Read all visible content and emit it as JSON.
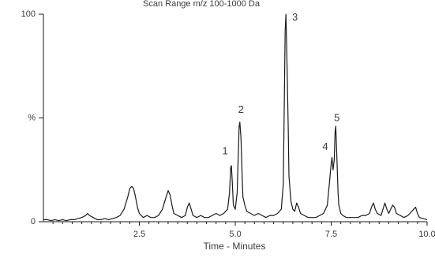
{
  "chart_data": {
    "type": "line",
    "title": "Scan Range m/z 100-1000 Da",
    "xlabel": "Time - Minutes",
    "ylabel": "%",
    "xlim": [
      0,
      10
    ],
    "ylim": [
      0,
      100
    ],
    "grid": false,
    "legend": "none",
    "x_ticks": [
      {
        "value": 2.5,
        "label": "2.5"
      },
      {
        "value": 5.0,
        "label": "5.0"
      },
      {
        "value": 7.5,
        "label": "7.5"
      },
      {
        "value": 10.0,
        "label": "10.0"
      }
    ],
    "y_ticks": [
      {
        "value": 0,
        "label": "0"
      },
      {
        "value": 50,
        "label": "%"
      },
      {
        "value": 100,
        "label": "100"
      }
    ],
    "peak_labels": [
      {
        "label": "1",
        "x": 4.9,
        "y": 28
      },
      {
        "label": "2",
        "x": 5.15,
        "y": 48
      },
      {
        "label": "3",
        "x": 6.35,
        "y": 100
      },
      {
        "label": "4",
        "x": 7.55,
        "y": 30
      },
      {
        "label": "5",
        "x": 7.65,
        "y": 44
      }
    ],
    "series": [
      {
        "color": "#1a1a1a",
        "x": [
          0.0,
          0.1,
          0.2,
          0.3,
          0.4,
          0.5,
          0.6,
          0.7,
          0.8,
          0.9,
          1.0,
          1.1,
          1.15,
          1.2,
          1.3,
          1.4,
          1.5,
          1.6,
          1.7,
          1.8,
          1.9,
          2.0,
          2.1,
          2.2,
          2.25,
          2.3,
          2.35,
          2.4,
          2.45,
          2.5,
          2.6,
          2.7,
          2.8,
          2.9,
          3.0,
          3.1,
          3.2,
          3.25,
          3.3,
          3.35,
          3.4,
          3.5,
          3.6,
          3.7,
          3.75,
          3.8,
          3.85,
          3.9,
          4.0,
          4.1,
          4.2,
          4.3,
          4.4,
          4.5,
          4.6,
          4.7,
          4.8,
          4.85,
          4.88,
          4.9,
          4.92,
          4.95,
          5.0,
          5.05,
          5.1,
          5.12,
          5.15,
          5.18,
          5.2,
          5.25,
          5.3,
          5.4,
          5.5,
          5.6,
          5.7,
          5.8,
          5.9,
          6.0,
          6.1,
          6.2,
          6.25,
          6.28,
          6.3,
          6.32,
          6.35,
          6.38,
          6.4,
          6.45,
          6.5,
          6.55,
          6.6,
          6.65,
          6.7,
          6.8,
          6.9,
          7.0,
          7.1,
          7.2,
          7.3,
          7.4,
          7.45,
          7.5,
          7.52,
          7.55,
          7.58,
          7.6,
          7.62,
          7.65,
          7.68,
          7.7,
          7.75,
          7.8,
          7.9,
          8.0,
          8.1,
          8.2,
          8.3,
          8.4,
          8.5,
          8.55,
          8.6,
          8.65,
          8.7,
          8.8,
          8.85,
          8.9,
          8.95,
          9.0,
          9.05,
          9.1,
          9.15,
          9.2,
          9.3,
          9.4,
          9.5,
          9.6,
          9.65,
          9.7,
          9.75,
          9.8,
          9.9,
          10.0
        ],
        "y": [
          1,
          1,
          0.5,
          1,
          0.5,
          1,
          0.5,
          1,
          1,
          1.5,
          2,
          3,
          4,
          3,
          2,
          1,
          1,
          1.5,
          1,
          1.5,
          2,
          3,
          6,
          12,
          16,
          17,
          16,
          12,
          7,
          4,
          2,
          3,
          2,
          2,
          3,
          6,
          12,
          15,
          13,
          8,
          4,
          3,
          2,
          3,
          7,
          9,
          6,
          3,
          2,
          3,
          2,
          2,
          3,
          4,
          3,
          4,
          6,
          14,
          26,
          27,
          20,
          8,
          6,
          14,
          46,
          48,
          40,
          22,
          12,
          8,
          5,
          4,
          3,
          4,
          3,
          2,
          3,
          3,
          4,
          6,
          18,
          60,
          92,
          100,
          75,
          45,
          22,
          10,
          6,
          5,
          9,
          7,
          4,
          3,
          2,
          2,
          2,
          3,
          4,
          8,
          18,
          28,
          31,
          25,
          30,
          43,
          46,
          30,
          14,
          8,
          4,
          3,
          2,
          2,
          2,
          2,
          3,
          3,
          4,
          7,
          9,
          6,
          4,
          3,
          6,
          9,
          6,
          4,
          6,
          8,
          7,
          4,
          3,
          2,
          3,
          5,
          6,
          7,
          4,
          2,
          1.5,
          1
        ]
      }
    ]
  }
}
